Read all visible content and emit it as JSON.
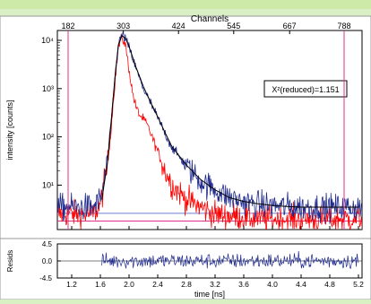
{
  "colors": {
    "panel_bg": "#cdeaa9",
    "plot_bg": "#ffffff",
    "decay": "#1f2a8c",
    "irf": "#ff0000",
    "fit": "#000000",
    "markers": "#e0308a",
    "residuals": "#1f2a8c"
  },
  "chart_data": [
    {
      "type": "line",
      "xlabel": "Channels",
      "ylabel": "intensity [counts]",
      "x_axis_top_ticks": [
        "182",
        "303",
        "424",
        "545",
        "667",
        "788"
      ],
      "x_axis_top_tick_time": [
        1.15,
        1.92,
        2.69,
        3.46,
        4.24,
        5.0
      ],
      "y_scale": "log",
      "y_tick_labels": [
        "10¹",
        "10²",
        "10³",
        "10⁴"
      ],
      "y_tick_values": [
        10,
        100,
        1000,
        10000
      ],
      "ylim": [
        1.2,
        16000
      ],
      "xlim": [
        1.0,
        5.25
      ],
      "annotation": "X²(reduced)=1.151",
      "grid": false,
      "series": [
        {
          "role": "decay",
          "x": [
            1.0,
            1.5,
            1.6,
            1.7,
            1.75,
            1.8,
            1.85,
            1.9,
            1.95,
            2.0,
            2.1,
            2.2,
            2.3,
            2.4,
            2.5,
            2.6,
            2.8,
            3.0,
            3.2,
            3.4,
            3.6,
            3.8,
            4.0,
            4.2,
            4.4,
            4.6,
            4.8,
            5.0,
            5.2,
            5.25
          ],
          "y": [
            3.5,
            3.5,
            5,
            30,
            200,
            1500,
            8000,
            13000,
            11000,
            7000,
            2500,
            1000,
            500,
            250,
            120,
            60,
            25,
            12,
            8,
            5.5,
            4.5,
            4,
            3.8,
            3.6,
            3.5,
            3.5,
            3.5,
            3.5,
            3.5,
            3.5
          ]
        },
        {
          "role": "fit",
          "x": [
            1.62,
            1.7,
            1.75,
            1.8,
            1.85,
            1.9,
            1.95,
            2.0,
            2.1,
            2.2,
            2.3,
            2.4,
            2.5,
            2.6,
            2.8,
            3.0,
            3.2,
            3.4,
            3.6,
            3.8,
            4.0,
            4.2,
            4.4,
            4.6,
            4.8,
            5.0,
            5.2
          ],
          "y": [
            5,
            30,
            200,
            1500,
            8000,
            12500,
            11000,
            7500,
            2700,
            1100,
            520,
            260,
            125,
            62,
            26,
            13,
            8,
            5.5,
            4.6,
            4.1,
            3.8,
            3.6,
            3.5,
            3.5,
            3.5,
            3.5,
            3.5
          ]
        },
        {
          "role": "irf",
          "x": [
            1.0,
            1.5,
            1.6,
            1.7,
            1.75,
            1.8,
            1.85,
            1.9,
            1.95,
            2.0,
            2.05,
            2.1,
            2.15,
            2.2,
            2.25,
            2.3,
            2.4,
            2.5,
            2.6,
            2.8,
            3.0,
            3.2,
            3.4,
            3.6,
            3.8,
            4.0,
            4.2,
            4.4,
            4.6,
            4.8,
            5.0,
            5.2,
            5.25
          ],
          "y": [
            2.5,
            2.5,
            4,
            25,
            150,
            1200,
            7000,
            11500,
            8000,
            2500,
            800,
            400,
            280,
            230,
            180,
            120,
            50,
            20,
            10,
            5,
            3.5,
            2.5,
            2.3,
            2.2,
            2.0,
            2.0,
            2.0,
            2.0,
            2.0,
            2.0,
            2.0,
            2.0,
            2.0
          ]
        }
      ],
      "horizontal_lines": [
        {
          "role": "irf-baseline",
          "y": 1.8
        },
        {
          "role": "decay-baseline",
          "y": 2.6
        }
      ],
      "vertical_markers": [
        1.15,
        5.0
      ]
    },
    {
      "type": "line",
      "ylabel": "Resids",
      "xlabel": "time [ns]",
      "x_tick_labels": [
        "1.2",
        "1.6",
        "2.0",
        "2.4",
        "2.8",
        "3.2",
        "3.6",
        "4.0",
        "4.4",
        "4.8",
        "5.2"
      ],
      "x_tick_values": [
        1.2,
        1.6,
        2.0,
        2.4,
        2.8,
        3.2,
        3.6,
        4.0,
        4.4,
        4.8,
        5.2
      ],
      "y_tick_labels": [
        "4.5",
        "0.0",
        "-4.5"
      ],
      "y_tick_values": [
        4.5,
        0.0,
        -4.5
      ],
      "ylim": [
        -4.5,
        4.5
      ],
      "xlim": [
        1.0,
        5.25
      ],
      "residual_range": [
        1.62,
        5.2
      ],
      "residual_amplitude": 1.0
    }
  ]
}
